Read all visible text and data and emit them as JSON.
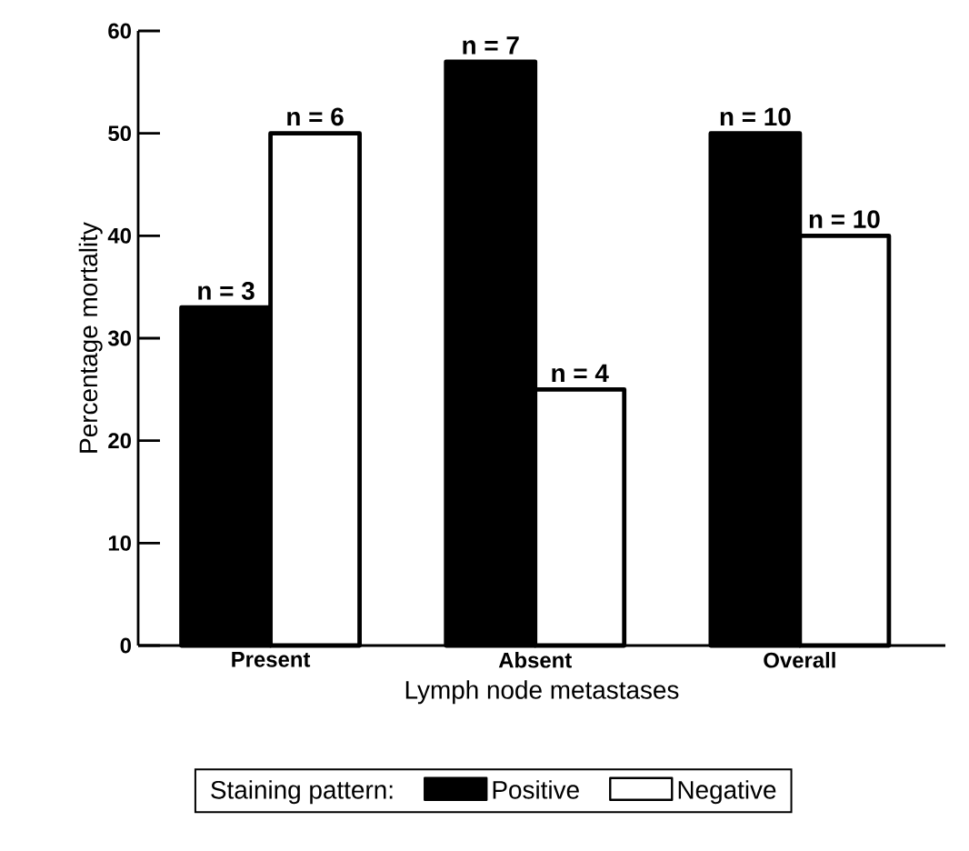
{
  "chart_data": {
    "type": "bar",
    "xlabel": "Lymph node metastases",
    "ylabel": "Percentage mortality",
    "categories": [
      "Present",
      "Absent",
      "Overall"
    ],
    "series": [
      {
        "name": "Positive",
        "color": "#000000",
        "values": [
          33,
          57,
          50
        ]
      },
      {
        "name": "Negative",
        "color": "#ffffff",
        "values": [
          50,
          25,
          40
        ]
      }
    ],
    "annotations": [
      {
        "text": "n = 3",
        "x": "Present",
        "y": 33
      },
      {
        "text": "n = 7",
        "x": "Absent",
        "y": 57
      },
      {
        "text": "n = 10",
        "x": "Overall",
        "y": 50
      },
      {
        "text": "n = 6",
        "x": "Present",
        "y": 50
      },
      {
        "text": "n = 4",
        "x": "Absent",
        "y": 25
      },
      {
        "text": "n = 10",
        "x": "Overall",
        "y": 40
      }
    ],
    "ylim": [
      0,
      60
    ],
    "yticks": [
      0,
      10,
      20,
      30,
      40,
      50,
      60
    ],
    "legend": "bottom",
    "legend_title": "Staining pattern:"
  }
}
